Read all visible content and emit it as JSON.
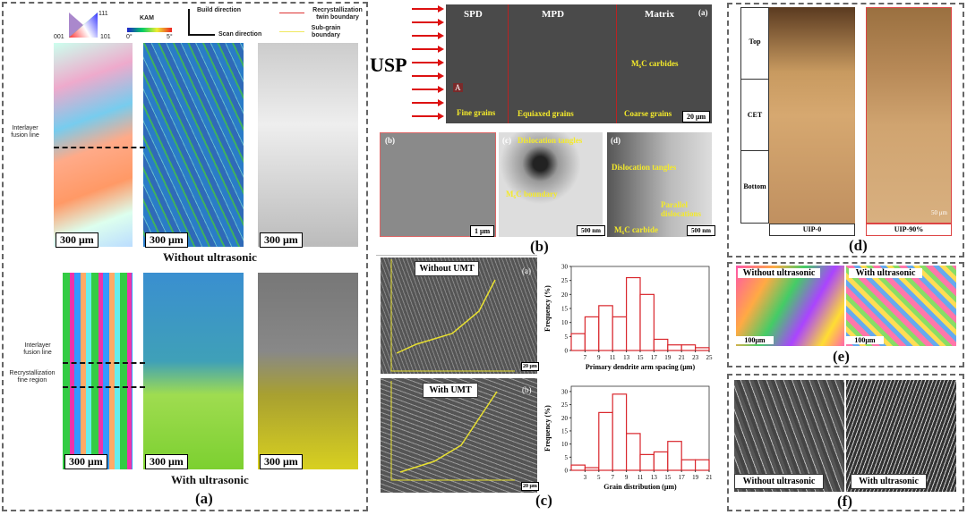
{
  "panel_a": {
    "ipf_legend": {
      "c001": "001",
      "c111": "111",
      "c101": "101"
    },
    "kam_legend": {
      "title": "KAM",
      "min": "0°",
      "max": "5°"
    },
    "directions": {
      "build": "Build direction",
      "scan": "Scan direction"
    },
    "boundary_legend": {
      "twin": "Recrystallization twin boundary",
      "subgrain": "Sub-grain boundary",
      "twin_color": "#d33",
      "subgrain_color": "#f0e860"
    },
    "scale": "300 μm",
    "annot_fusion": "Interlayer fusion line",
    "annot_recryst": "Recrystallization fine region",
    "caption_top": "Without ultrasonic",
    "caption_bottom": "With ultrasonic",
    "label": "(a)"
  },
  "panel_b": {
    "usp": "USP",
    "zones": [
      "SPD",
      "MPD",
      "Matrix"
    ],
    "sub_a": "(a)",
    "marker_a": "A",
    "grains": [
      "Fine grains",
      "Equiaxed grains",
      "Coarse grains"
    ],
    "carbides": "M₆C carbides",
    "scale_a": "20 μm",
    "sub_b": "(b)",
    "scale_b": "1 μm",
    "sub_c": "(c)",
    "c_tangles": "Dislocation tangles",
    "c_boundary": "M₆C boundary",
    "scale_c": "500 nm",
    "sub_d": "(d)",
    "d_tangles": "Dislocation tangles",
    "d_parallel": "Parallel dislocations",
    "d_carbide": "M₆C carbide",
    "scale_d": "500 nm",
    "label": "(b)"
  },
  "panel_c": {
    "img1_title": "Without UMT",
    "img1_sub": "(a)",
    "img2_title": "With UMT",
    "img2_sub": "(b)",
    "scale": "20 μm",
    "label": "(c)"
  },
  "chart_data": [
    {
      "type": "bar",
      "subtype": "histogram",
      "xlabel": "Primary dendrite arm spacing (μm)",
      "ylabel": "Frequency (%)",
      "bin_edges": [
        5,
        7,
        9,
        11,
        13,
        15,
        17,
        19,
        21,
        23,
        25
      ],
      "values": [
        6,
        12,
        16,
        12,
        26,
        20,
        4,
        2,
        2,
        1
      ],
      "xticks": [
        7,
        9,
        11,
        13,
        15,
        17,
        19,
        21,
        23,
        25
      ],
      "yticks": [
        0,
        5,
        10,
        15,
        20,
        25,
        30
      ],
      "xlim": [
        5,
        25
      ],
      "ylim": [
        0,
        30
      ],
      "bar_color": "#d9262c",
      "grid": false
    },
    {
      "type": "bar",
      "subtype": "histogram",
      "xlabel": "Grain distribution (μm)",
      "ylabel": "Frequency (%)",
      "bin_edges": [
        1,
        3,
        5,
        7,
        9,
        11,
        13,
        15,
        17,
        19,
        21
      ],
      "values": [
        2,
        1,
        22,
        29,
        14,
        6,
        7,
        11,
        4,
        4
      ],
      "xticks": [
        3,
        5,
        7,
        9,
        11,
        13,
        15,
        17,
        19,
        21
      ],
      "yticks": [
        0,
        5,
        10,
        15,
        20,
        25,
        30
      ],
      "xlim": [
        1,
        21
      ],
      "ylim": [
        0,
        32
      ],
      "bar_color": "#d9262c",
      "grid": false
    }
  ],
  "panel_d": {
    "rows": [
      "Top",
      "CET",
      "Bottom"
    ],
    "cols": [
      "UIP-0",
      "UIP-90%"
    ],
    "scale": "50 μm",
    "label": "(d)"
  },
  "panel_e": {
    "left": "Without ultrasonic",
    "right": "With ultrasonic",
    "scale": "100μm",
    "label": "(e)"
  },
  "panel_f": {
    "left": "Without ultrasonic",
    "right": "With ultrasonic",
    "label": "(f)"
  }
}
